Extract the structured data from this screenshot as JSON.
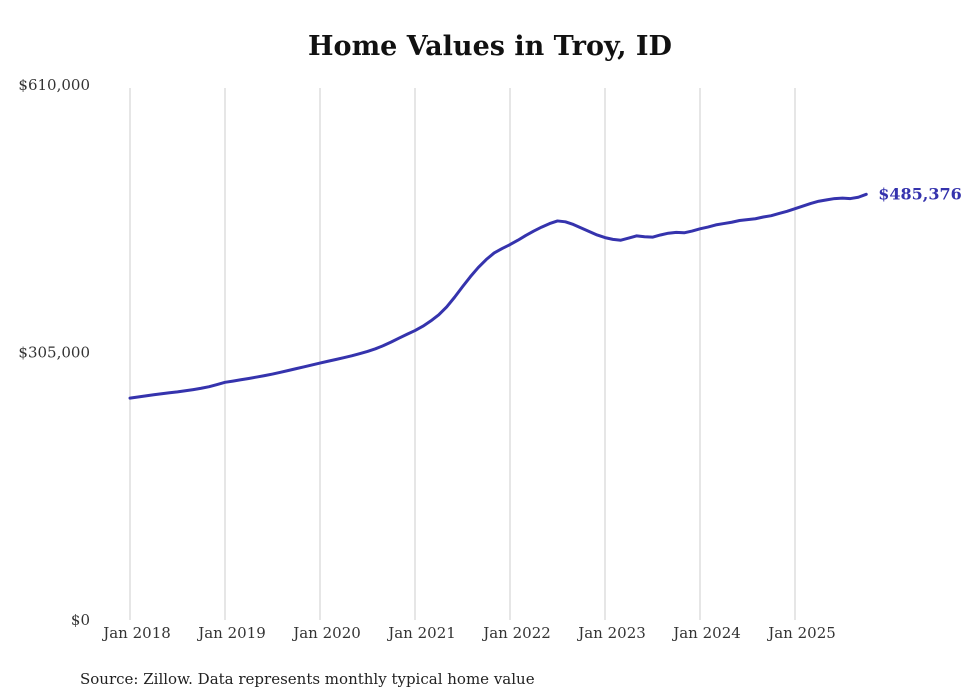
{
  "title": "Home Values in Troy, ID",
  "source_note": "Source: Zillow. Data represents monthly typical home value",
  "colors": {
    "line": "#3533ad",
    "grid": "#cccccc",
    "text": "#111111",
    "axis_text": "#333333"
  },
  "chart_data": {
    "type": "line",
    "title": "Home Values in Troy, ID",
    "xlabel": "",
    "ylabel": "",
    "ylim": [
      0,
      610000
    ],
    "grid": "vertical-only",
    "legend": "none",
    "x_start_month": "Jan 2018",
    "x_end_month": "Oct 2025",
    "x_tick_labels": [
      "Jan 2018",
      "Jan 2019",
      "Jan 2020",
      "Jan 2021",
      "Jan 2022",
      "Jan 2023",
      "Jan 2024",
      "Jan 2025"
    ],
    "y_ticks": [
      {
        "label": "$610,000",
        "value": 610000
      },
      {
        "label": "$305,000",
        "value": 305000
      },
      {
        "label": "$0",
        "value": 0
      }
    ],
    "end_label": "$485,376",
    "end_value": 485376,
    "series": [
      {
        "name": "Monthly typical home value",
        "values": [
          253000,
          254300,
          255600,
          256800,
          258000,
          259100,
          260100,
          261400,
          262700,
          264200,
          266000,
          268400,
          271000,
          272400,
          273900,
          275400,
          277000,
          278600,
          280400,
          282400,
          284500,
          286600,
          288700,
          290800,
          293000,
          295000,
          297000,
          299100,
          301200,
          303600,
          306200,
          309200,
          312800,
          317000,
          321500,
          325800,
          330000,
          335000,
          341000,
          348000,
          357000,
          368000,
          380000,
          391500,
          402000,
          411000,
          418500,
          423500,
          428000,
          433000,
          438500,
          443500,
          448000,
          452000,
          455000,
          454000,
          451000,
          447000,
          443000,
          439000,
          436000,
          434000,
          433000,
          435500,
          438000,
          437000,
          436500,
          439000,
          441000,
          442000,
          441500,
          443500,
          446000,
          448000,
          450500,
          452000,
          453500,
          455500,
          456500,
          457500,
          459500,
          461000,
          463500,
          466000,
          469000,
          472000,
          475000,
          477500,
          479000,
          480500,
          481000,
          480500,
          482000,
          485376
        ]
      }
    ]
  }
}
